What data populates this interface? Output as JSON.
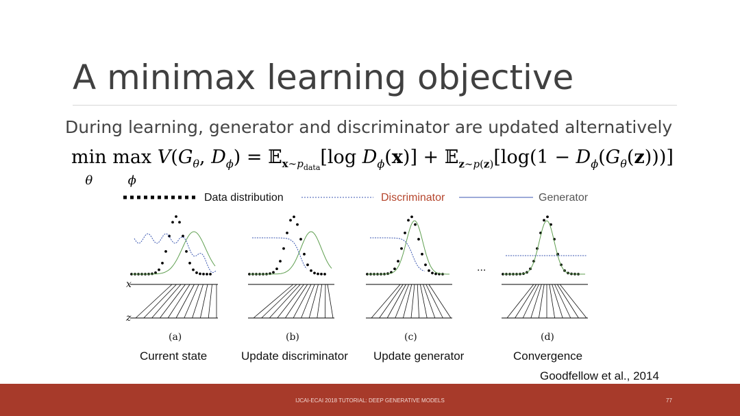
{
  "slide": {
    "title": "A minimax learning objective",
    "subtitle": "During learning, generator and discriminator are updated alternatively",
    "formula": "min_θ max_φ V(G_θ, D_φ) = E_{x~p_data}[log D_φ(x)] + E_{z~p(z)}[log(1 − D_φ(G_θ(z)))]",
    "citation": "Goodfellow et al., 2014",
    "footer_text": "IJCAI-ECAI 2018 TUTORIAL: DEEP GENERATIVE MODELS",
    "page_number": "77"
  },
  "legend": {
    "data_label": "Data distribution",
    "discriminator_label": "Discriminator",
    "generator_label": "Generator"
  },
  "panels": [
    {
      "letter": "(a)",
      "caption": "Current state"
    },
    {
      "letter": "(b)",
      "caption": "Update discriminator"
    },
    {
      "letter": "(c)",
      "caption": "Update generator"
    },
    {
      "letter": "(d)",
      "caption": "Convergence"
    }
  ],
  "axis_labels": {
    "x": "x",
    "z": "z"
  },
  "ellipsis": "...",
  "colors": {
    "title": "#404040",
    "discriminator_text": "#b5452c",
    "discriminator_line": "#3a56b0",
    "generator_line": "#5e9e4f",
    "footer_bg": "#a73a2a"
  }
}
